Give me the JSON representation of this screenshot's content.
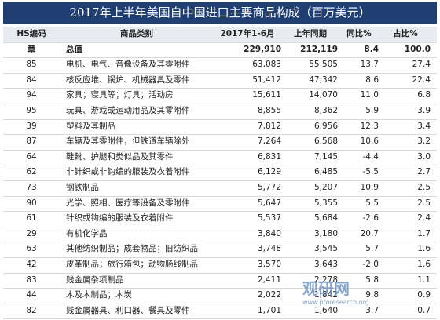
{
  "header": {
    "title": "2017年上半年美国自中国进口主要商品构成（百万美元）"
  },
  "table": {
    "columns": [
      "HS编码",
      "商品类别",
      "2017年1-6月",
      "上年同期",
      "同比%",
      "占比%"
    ],
    "rows": [
      [
        "章",
        "总值",
        "229,910",
        "212,119",
        "8.4",
        "100.0"
      ],
      [
        "85",
        "电机、电气、音像设备及其零附件",
        "63,083",
        "55,505",
        "13.7",
        "27.4"
      ],
      [
        "84",
        "核反应堆、锅炉、机械器具及零件",
        "51,412",
        "47,342",
        "8.6",
        "22.4"
      ],
      [
        "94",
        "家具；寝具等；灯具；活动房",
        "15,611",
        "14,070",
        "11.0",
        "6.8"
      ],
      [
        "95",
        "玩具、游戏或运动用品及其零附件",
        "8,855",
        "8,362",
        "5.9",
        "3.9"
      ],
      [
        "39",
        "塑料及其制品",
        "7,812",
        "6,956",
        "12.3",
        "3.4"
      ],
      [
        "87",
        "车辆及其零附件，但铁道车辆除外",
        "7,264",
        "6,568",
        "10.6",
        "3.2"
      ],
      [
        "64",
        "鞋靴、护腿和类似品及其零件",
        "6,831",
        "7,145",
        "-4.4",
        "3.0"
      ],
      [
        "62",
        "非针织或非钩编的服装及衣着附件",
        "6,129",
        "6,485",
        "-5.5",
        "2.7"
      ],
      [
        "73",
        "钢铁制品",
        "5,772",
        "5,207",
        "10.9",
        "2.5"
      ],
      [
        "90",
        "光学、照相、医疗等设备及零附件",
        "5,647",
        "5,355",
        "5.5",
        "2.5"
      ],
      [
        "61",
        "针织或钩编的服装及衣着附件",
        "5,537",
        "5,684",
        "-2.6",
        "2.4"
      ],
      [
        "29",
        "有机化学品",
        "3,840",
        "3,180",
        "20.7",
        "1.7"
      ],
      [
        "63",
        "其他纺织制品；成套物品；旧纺织品",
        "3,748",
        "3,545",
        "5.7",
        "1.6"
      ],
      [
        "42",
        "皮革制品；旅行箱包；动物肠线制品",
        "3,570",
        "3,643",
        "-2.0",
        "1.6"
      ],
      [
        "83",
        "贱金属杂项制品",
        "2,411",
        "2,278",
        "5.8",
        "1.1"
      ],
      [
        "44",
        "木及木制品；木炭",
        "2,022",
        "1,842",
        "9.8",
        "0.9"
      ],
      [
        "82",
        "贱金属器具、利口器、餐具及零件",
        "1,701",
        "1,640",
        "3.7",
        "0.7"
      ]
    ]
  },
  "watermark": {
    "name": "观研网",
    "url": "www.proresearch.org"
  }
}
